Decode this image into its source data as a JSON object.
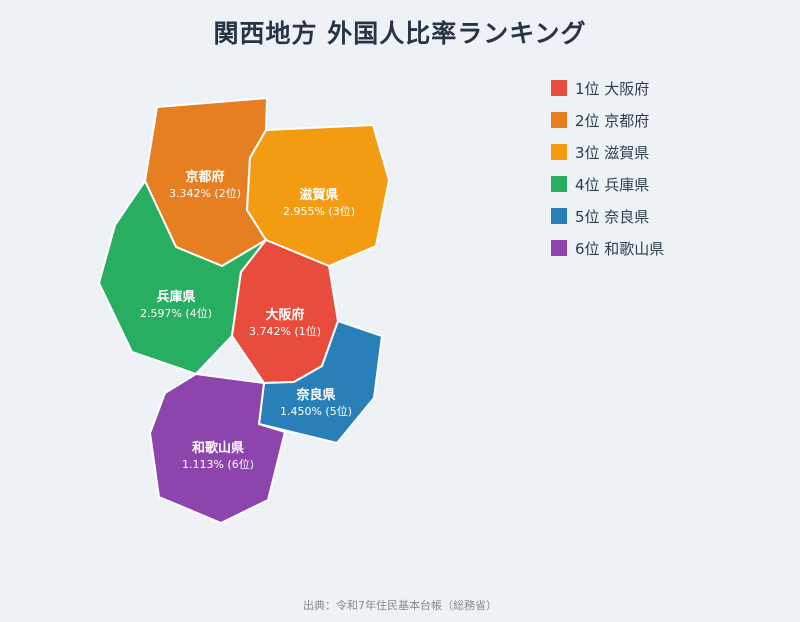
{
  "title": "関西地方 外国人比率ランキング",
  "source": "出典：令和7年住民基本台帳（総務省）",
  "prefectures": [
    {
      "key": "osaka",
      "name": "大阪府",
      "value": "3.742% (1位)",
      "color": "#e74c3c"
    },
    {
      "key": "kyoto",
      "name": "京都府",
      "value": "3.342% (2位)",
      "color": "#e67e22"
    },
    {
      "key": "shiga",
      "name": "滋賀県",
      "value": "2.955% (3位)",
      "color": "#f39c12"
    },
    {
      "key": "hyogo",
      "name": "兵庫県",
      "value": "2.597% (4位)",
      "color": "#27ae60"
    },
    {
      "key": "nara",
      "name": "奈良県",
      "value": "1.450% (5位)",
      "color": "#2980b9"
    },
    {
      "key": "wakayama",
      "name": "和歌山県",
      "value": "1.113% (6位)",
      "color": "#8e44ad"
    }
  ],
  "legend": [
    {
      "label": "1位 大阪府",
      "color": "#e74c3c"
    },
    {
      "label": "2位 京都府",
      "color": "#e67e22"
    },
    {
      "label": "3位 滋賀県",
      "color": "#f39c12"
    },
    {
      "label": "4位 兵庫県",
      "color": "#27ae60"
    },
    {
      "label": "5位 奈良県",
      "color": "#2980b9"
    },
    {
      "label": "6位 和歌山県",
      "color": "#8e44ad"
    }
  ]
}
